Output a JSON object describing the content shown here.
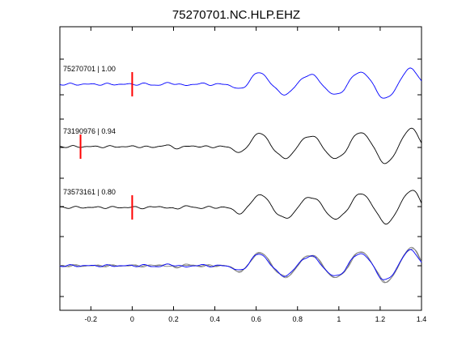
{
  "chart_data": {
    "type": "line",
    "title": "75270701.NC.HLP.EHZ",
    "xlabel": "",
    "ylabel": "",
    "xlim": [
      -0.35,
      1.4
    ],
    "x_ticks": [
      -0.2,
      0,
      0.2,
      0.4,
      0.6,
      0.8,
      1,
      1.2,
      1.4
    ],
    "x_tick_labels": [
      "-0.2",
      "0",
      "0.2",
      "0.4",
      "0.6",
      "0.8",
      "1",
      "1.2",
      "1.4"
    ],
    "grid": false,
    "colors": {
      "primary": "#0000ff",
      "secondary": "#000000",
      "overlay": "#808080",
      "marker": "#ff0000"
    },
    "traces": [
      {
        "id": "75270701",
        "label": "75270701 | 1.00",
        "pick_time": 0.0,
        "color": "#0000ff",
        "seed": 1,
        "scale": 1.0
      },
      {
        "id": "73190976",
        "label": "73190976 | 0.94",
        "pick_time": -0.25,
        "color": "#000000",
        "seed": 2,
        "scale": 1.15
      },
      {
        "id": "73573161",
        "label": "73573161 | 0.80",
        "pick_time": 0.0,
        "color": "#000000",
        "seed": 3,
        "scale": 1.1
      }
    ],
    "stack": {
      "series": [
        "75270701",
        "73190976",
        "73573161"
      ]
    }
  }
}
